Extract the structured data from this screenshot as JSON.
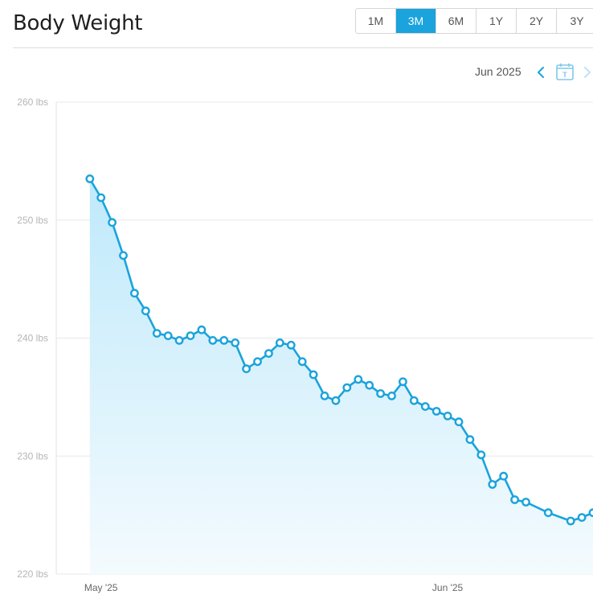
{
  "header": {
    "title": "Body Weight"
  },
  "range_buttons": [
    {
      "label": "1M",
      "active": false
    },
    {
      "label": "3M",
      "active": true
    },
    {
      "label": "6M",
      "active": false
    },
    {
      "label": "1Y",
      "active": false
    },
    {
      "label": "2Y",
      "active": false
    },
    {
      "label": "3Y",
      "active": false
    }
  ],
  "period_nav": {
    "label": "Jun 2025",
    "prev_icon": "chevron-left-icon",
    "today_icon": "calendar-today-icon",
    "today_glyph": "T",
    "next_icon": "chevron-right-icon"
  },
  "colors": {
    "line": "#1aa3dc",
    "active": "#1aa3dc",
    "fill_top": "#bfe9fb",
    "grid": "#e8e8e8",
    "axis_text": "#b5b5b5"
  },
  "chart_data": {
    "type": "area",
    "title": "",
    "xlabel": "",
    "ylabel": "",
    "ylim": [
      220,
      260
    ],
    "y_ticks": [
      {
        "value": 260,
        "label": "260 lbs"
      },
      {
        "value": 250,
        "label": "250 lbs"
      },
      {
        "value": 240,
        "label": "240 lbs"
      },
      {
        "value": 230,
        "label": "230 lbs"
      },
      {
        "value": 220,
        "label": "220 lbs"
      }
    ],
    "x_ticks": [
      {
        "date": "2025-05-01",
        "label": "May '25"
      },
      {
        "date": "2025-06-01",
        "label": "Jun '25"
      }
    ],
    "x_range": [
      "2025-04-27",
      "2025-06-14"
    ],
    "grid": true,
    "marker": "circle",
    "series": [
      {
        "x": [
          "2025-04-30",
          "2025-05-01",
          "2025-05-02",
          "2025-05-03",
          "2025-05-04",
          "2025-05-05",
          "2025-05-06",
          "2025-05-07",
          "2025-05-08",
          "2025-05-09",
          "2025-05-10",
          "2025-05-11",
          "2025-05-12",
          "2025-05-13",
          "2025-05-14",
          "2025-05-15",
          "2025-05-16",
          "2025-05-17",
          "2025-05-18",
          "2025-05-19",
          "2025-05-20",
          "2025-05-21",
          "2025-05-22",
          "2025-05-23",
          "2025-05-24",
          "2025-05-25",
          "2025-05-26",
          "2025-05-27",
          "2025-05-28",
          "2025-05-29",
          "2025-05-30",
          "2025-05-31",
          "2025-06-01",
          "2025-06-02",
          "2025-06-03",
          "2025-06-04",
          "2025-06-05",
          "2025-06-06",
          "2025-06-07",
          "2025-06-08",
          "2025-06-10",
          "2025-06-12",
          "2025-06-13",
          "2025-06-14"
        ],
        "values": [
          253.5,
          251.9,
          249.8,
          247.0,
          243.8,
          242.3,
          240.4,
          240.2,
          239.8,
          240.2,
          240.7,
          239.8,
          239.8,
          239.6,
          237.4,
          238.0,
          238.7,
          239.6,
          239.4,
          238.0,
          236.9,
          235.1,
          234.7,
          235.8,
          236.5,
          236.0,
          235.3,
          235.1,
          236.3,
          234.7,
          234.2,
          233.8,
          233.4,
          232.9,
          231.4,
          230.1,
          227.6,
          228.3,
          226.3,
          226.1,
          225.2,
          224.5,
          224.8,
          225.2
        ]
      }
    ]
  }
}
